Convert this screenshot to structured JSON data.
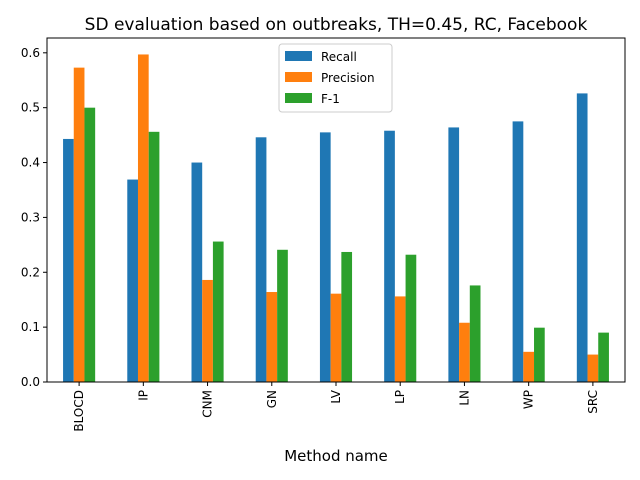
{
  "chart_data": {
    "type": "bar",
    "title": "SD evaluation based on outbreaks, TH=0.45, RC, Facebook",
    "xlabel": "Method name",
    "ylabel": "",
    "categories": [
      "BLOCD",
      "IP",
      "CNM",
      "GN",
      "LV",
      "LP",
      "LN",
      "WP",
      "SRC"
    ],
    "series": [
      {
        "name": "Recall",
        "color": "#1f77b4",
        "values": [
          0.443,
          0.369,
          0.4,
          0.446,
          0.455,
          0.458,
          0.464,
          0.475,
          0.526
        ]
      },
      {
        "name": "Precision",
        "color": "#ff7f0e",
        "values": [
          0.573,
          0.597,
          0.186,
          0.164,
          0.161,
          0.156,
          0.108,
          0.055,
          0.05
        ]
      },
      {
        "name": "F-1",
        "color": "#2ca02c",
        "values": [
          0.5,
          0.456,
          0.256,
          0.241,
          0.237,
          0.232,
          0.176,
          0.099,
          0.09
        ]
      }
    ],
    "yticks": [
      "0.0",
      "0.1",
      "0.2",
      "0.3",
      "0.4",
      "0.5",
      "0.6"
    ],
    "ylim": [
      0,
      0.627
    ],
    "legend": "top-center",
    "grid": false
  }
}
